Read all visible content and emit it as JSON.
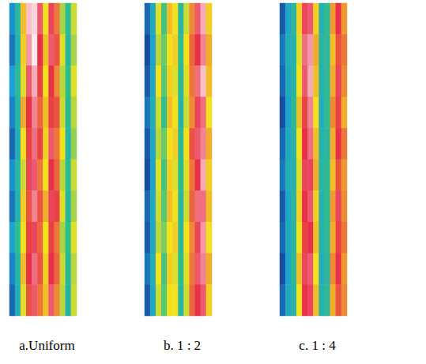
{
  "chart_data": [
    {
      "type": "heatmap",
      "title": "a.Uniform",
      "zlim": [
        0,
        5
      ],
      "tick_labels": false,
      "cells": [
        [
          0.9,
          1.7,
          3.2,
          4.7,
          4.8,
          4.2,
          3.0,
          4.1,
          3.6,
          2.6,
          1.9,
          2.8
        ],
        [
          0.7,
          1.5,
          3.1,
          4.5,
          4.9,
          4.0,
          3.2,
          4.2,
          3.8,
          2.9,
          1.7,
          2.6
        ],
        [
          1.0,
          1.8,
          2.9,
          4.2,
          4.6,
          3.9,
          3.0,
          4.0,
          3.5,
          2.7,
          2.0,
          2.9
        ],
        [
          0.8,
          1.6,
          3.3,
          4.0,
          4.4,
          3.7,
          3.2,
          3.9,
          3.8,
          2.8,
          1.8,
          2.7
        ],
        [
          0.6,
          1.4,
          3.0,
          3.9,
          4.3,
          3.9,
          3.1,
          4.2,
          3.6,
          3.0,
          1.6,
          2.5
        ],
        [
          0.9,
          1.7,
          2.8,
          4.1,
          4.2,
          3.6,
          3.0,
          4.0,
          3.7,
          2.7,
          1.9,
          2.8
        ],
        [
          0.7,
          1.5,
          3.1,
          3.8,
          4.4,
          3.8,
          3.3,
          4.1,
          3.9,
          2.9,
          1.7,
          2.6
        ],
        [
          1.1,
          1.9,
          3.0,
          3.9,
          4.1,
          3.7,
          3.0,
          3.9,
          3.6,
          2.6,
          2.0,
          2.9
        ],
        [
          0.8,
          1.6,
          3.2,
          4.0,
          4.3,
          3.8,
          3.1,
          4.0,
          3.7,
          2.8,
          1.8,
          2.7
        ],
        [
          0.6,
          1.4,
          2.9,
          3.8,
          4.2,
          3.6,
          3.2,
          4.2,
          3.5,
          2.7,
          1.6,
          2.8
        ]
      ]
    },
    {
      "type": "heatmap",
      "title": "b. 1 : 2",
      "zlim": [
        0,
        5
      ],
      "tick_labels": false,
      "cells": [
        [
          0.6,
          1.3,
          2.9,
          2.1,
          3.2,
          3.0,
          1.7,
          2.8,
          3.5,
          4.2,
          4.6,
          3.1
        ],
        [
          0.4,
          1.1,
          2.7,
          2.3,
          3.0,
          3.1,
          1.9,
          3.0,
          3.7,
          4.0,
          4.4,
          3.3
        ],
        [
          0.5,
          1.2,
          3.0,
          2.2,
          3.1,
          2.9,
          1.8,
          2.9,
          3.6,
          4.3,
          4.7,
          3.2
        ],
        [
          0.7,
          1.4,
          2.8,
          2.0,
          3.2,
          3.0,
          1.6,
          2.8,
          3.5,
          4.1,
          4.3,
          3.0
        ],
        [
          0.5,
          1.2,
          2.7,
          2.3,
          3.0,
          3.1,
          1.8,
          3.0,
          3.8,
          4.2,
          4.4,
          3.3
        ],
        [
          0.4,
          1.1,
          2.9,
          2.1,
          3.1,
          2.9,
          1.9,
          2.9,
          3.6,
          4.0,
          4.6,
          3.1
        ],
        [
          0.6,
          1.3,
          2.8,
          2.2,
          3.2,
          3.0,
          1.7,
          2.8,
          3.7,
          4.3,
          4.3,
          3.2
        ],
        [
          0.5,
          1.2,
          2.7,
          2.4,
          3.0,
          3.1,
          1.8,
          3.0,
          3.5,
          4.1,
          4.5,
          3.0
        ],
        [
          0.7,
          1.4,
          3.0,
          2.1,
          3.1,
          2.9,
          1.9,
          2.9,
          3.6,
          4.2,
          4.4,
          3.3
        ],
        [
          0.5,
          1.2,
          2.8,
          2.2,
          3.0,
          3.0,
          1.7,
          2.8,
          3.7,
          4.0,
          4.2,
          3.1
        ]
      ]
    },
    {
      "type": "heatmap",
      "title": "c. 1 : 4",
      "zlim": [
        0,
        5
      ],
      "tick_labels": false,
      "cells": [
        [
          0.5,
          1.2,
          1.7,
          3.1,
          4.1,
          4.2,
          3.1,
          1.5,
          1.9,
          3.4,
          4.0,
          3.4
        ],
        [
          0.7,
          1.4,
          1.5,
          2.9,
          4.3,
          4.5,
          3.3,
          1.7,
          1.7,
          3.2,
          3.8,
          3.6
        ],
        [
          0.6,
          1.3,
          1.6,
          3.0,
          4.2,
          4.6,
          3.2,
          1.6,
          1.8,
          3.3,
          4.1,
          3.5
        ],
        [
          0.4,
          1.1,
          1.8,
          3.2,
          3.9,
          4.4,
          3.0,
          1.4,
          1.9,
          3.5,
          3.9,
          3.3
        ],
        [
          0.6,
          1.3,
          1.6,
          3.0,
          4.0,
          4.3,
          3.2,
          1.6,
          1.7,
          3.3,
          4.0,
          3.6
        ],
        [
          0.7,
          1.4,
          1.5,
          2.9,
          4.1,
          4.1,
          3.3,
          1.7,
          1.8,
          3.2,
          3.8,
          3.4
        ],
        [
          0.5,
          1.2,
          1.7,
          3.1,
          4.0,
          4.2,
          3.1,
          1.5,
          1.9,
          3.4,
          4.1,
          3.5
        ],
        [
          0.6,
          1.3,
          1.6,
          3.0,
          3.9,
          4.0,
          3.2,
          1.6,
          1.8,
          3.3,
          3.9,
          3.6
        ],
        [
          0.4,
          1.1,
          1.8,
          3.2,
          4.1,
          4.2,
          3.0,
          1.4,
          1.7,
          3.5,
          4.0,
          3.4
        ],
        [
          0.6,
          1.3,
          1.6,
          3.0,
          4.0,
          4.1,
          3.2,
          1.6,
          1.8,
          3.3,
          3.8,
          3.5
        ]
      ]
    }
  ]
}
